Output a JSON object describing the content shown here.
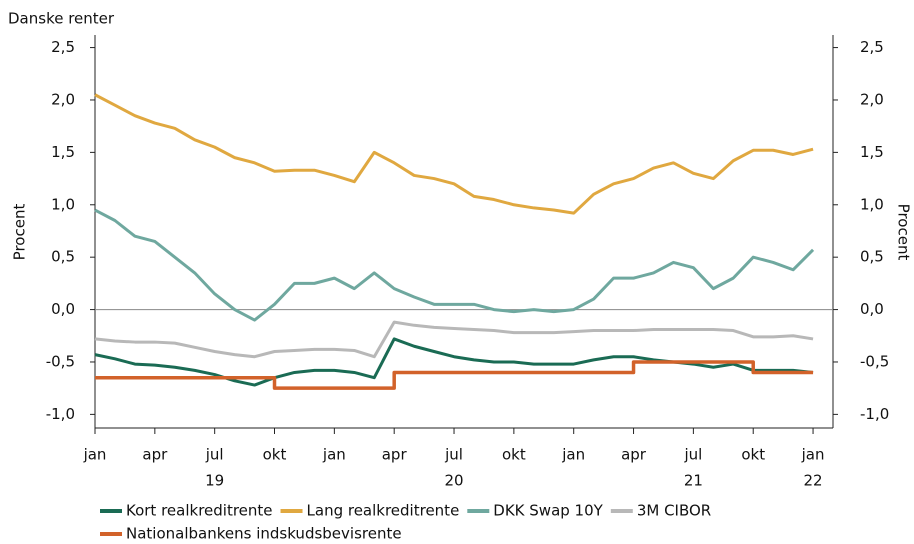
{
  "chart_data": {
    "type": "line",
    "title": "Danske renter",
    "ylabel": "Procent",
    "y2label": "Procent",
    "x": [
      "2019-01",
      "2019-02",
      "2019-03",
      "2019-04",
      "2019-05",
      "2019-06",
      "2019-07",
      "2019-08",
      "2019-09",
      "2019-10",
      "2019-11",
      "2019-12",
      "2020-01",
      "2020-02",
      "2020-03",
      "2020-04",
      "2020-05",
      "2020-06",
      "2020-07",
      "2020-08",
      "2020-09",
      "2020-10",
      "2020-11",
      "2020-12",
      "2021-01",
      "2021-02",
      "2021-03",
      "2021-04",
      "2021-05",
      "2021-06",
      "2021-07",
      "2021-08",
      "2021-09",
      "2021-10",
      "2021-11",
      "2021-12",
      "2022-01"
    ],
    "xlim": [
      "2019-01",
      "2022-02"
    ],
    "xticks": [
      {
        "value": "2019-01",
        "label": "jan"
      },
      {
        "value": "2019-04",
        "label": "apr"
      },
      {
        "value": "2019-07",
        "label": "jul"
      },
      {
        "value": "2019-10",
        "label": "okt"
      },
      {
        "value": "2020-01",
        "label": "jan"
      },
      {
        "value": "2020-04",
        "label": "apr"
      },
      {
        "value": "2020-07",
        "label": "jul"
      },
      {
        "value": "2020-10",
        "label": "okt"
      },
      {
        "value": "2021-01",
        "label": "jan"
      },
      {
        "value": "2021-04",
        "label": "apr"
      },
      {
        "value": "2021-07",
        "label": "jul"
      },
      {
        "value": "2021-10",
        "label": "okt"
      },
      {
        "value": "2022-01",
        "label": "jan"
      }
    ],
    "year_labels": [
      {
        "value": "2019-07",
        "label": "19"
      },
      {
        "value": "2020-07",
        "label": "20"
      },
      {
        "value": "2021-07",
        "label": "21"
      },
      {
        "value": "2022-01",
        "label": "22"
      }
    ],
    "ylim": [
      -1.13,
      2.62
    ],
    "yticks": [
      {
        "value": -1.0,
        "label": "-1,0"
      },
      {
        "value": -0.5,
        "label": "-0,5"
      },
      {
        "value": 0,
        "label": "0,0"
      },
      {
        "value": 0.5,
        "label": "0,5"
      },
      {
        "value": 1.0,
        "label": "1,0"
      },
      {
        "value": 1.5,
        "label": "1,5"
      },
      {
        "value": 2.0,
        "label": "2,0"
      },
      {
        "value": 2.5,
        "label": "2,5"
      }
    ],
    "y2lim": [
      -1.13,
      2.62
    ],
    "y2ticks": [
      {
        "value": -1.0,
        "label": "-1,0"
      },
      {
        "value": -0.5,
        "label": "-0,5"
      },
      {
        "value": 0,
        "label": "0,0"
      },
      {
        "value": 0.5,
        "label": "0,5"
      },
      {
        "value": 1.0,
        "label": "1,0"
      },
      {
        "value": 1.5,
        "label": "1,5"
      },
      {
        "value": 2.0,
        "label": "2,0"
      },
      {
        "value": 2.5,
        "label": "2,5"
      }
    ],
    "series": [
      {
        "name": "Kort realkreditrente",
        "color": "#1a6b54",
        "values": [
          -0.43,
          -0.47,
          -0.52,
          -0.53,
          -0.55,
          -0.58,
          -0.62,
          -0.68,
          -0.72,
          -0.65,
          -0.6,
          -0.58,
          -0.58,
          -0.6,
          -0.65,
          -0.28,
          -0.35,
          -0.4,
          -0.45,
          -0.48,
          -0.5,
          -0.5,
          -0.52,
          -0.52,
          -0.52,
          -0.48,
          -0.45,
          -0.45,
          -0.48,
          -0.5,
          -0.52,
          -0.55,
          -0.52,
          -0.58,
          -0.58,
          -0.58,
          -0.6
        ]
      },
      {
        "name": "Lang realkreditrente",
        "color": "#e0a840",
        "values": [
          2.05,
          1.95,
          1.85,
          1.78,
          1.73,
          1.62,
          1.55,
          1.45,
          1.4,
          1.32,
          1.33,
          1.33,
          1.28,
          1.22,
          1.5,
          1.4,
          1.28,
          1.25,
          1.2,
          1.08,
          1.05,
          1.0,
          0.97,
          0.95,
          0.92,
          1.1,
          1.2,
          1.25,
          1.35,
          1.4,
          1.3,
          1.25,
          1.42,
          1.52,
          1.52,
          1.48,
          1.53
        ]
      },
      {
        "name": "DKK Swap 10Y",
        "color": "#6fa89f",
        "values": [
          0.95,
          0.85,
          0.7,
          0.65,
          0.5,
          0.35,
          0.15,
          0.0,
          -0.1,
          0.05,
          0.25,
          0.25,
          0.3,
          0.2,
          0.35,
          0.2,
          0.12,
          0.05,
          0.05,
          0.05,
          0.0,
          -0.02,
          0.0,
          -0.02,
          0.0,
          0.1,
          0.3,
          0.3,
          0.35,
          0.45,
          0.4,
          0.2,
          0.3,
          0.5,
          0.45,
          0.38,
          0.57
        ]
      },
      {
        "name": "3M CIBOR",
        "color": "#b8b8b8",
        "values": [
          -0.28,
          -0.3,
          -0.31,
          -0.31,
          -0.32,
          -0.36,
          -0.4,
          -0.43,
          -0.45,
          -0.4,
          -0.39,
          -0.38,
          -0.38,
          -0.39,
          -0.45,
          -0.12,
          -0.15,
          -0.17,
          -0.18,
          -0.19,
          -0.2,
          -0.22,
          -0.22,
          -0.22,
          -0.21,
          -0.2,
          -0.2,
          -0.2,
          -0.19,
          -0.19,
          -0.19,
          -0.19,
          -0.2,
          -0.26,
          -0.26,
          -0.25,
          -0.28
        ]
      },
      {
        "name": "Nationalbankens indskudsbevisrente",
        "color": "#d2622a",
        "step": true,
        "values": [
          -0.65,
          -0.65,
          -0.65,
          -0.65,
          -0.65,
          -0.65,
          -0.65,
          -0.65,
          -0.65,
          -0.75,
          -0.75,
          -0.75,
          -0.75,
          -0.75,
          -0.75,
          -0.6,
          -0.6,
          -0.6,
          -0.6,
          -0.6,
          -0.6,
          -0.6,
          -0.6,
          -0.6,
          -0.6,
          -0.6,
          -0.6,
          -0.5,
          -0.5,
          -0.5,
          -0.5,
          -0.5,
          -0.5,
          -0.6,
          -0.6,
          -0.6,
          -0.6
        ]
      }
    ]
  }
}
